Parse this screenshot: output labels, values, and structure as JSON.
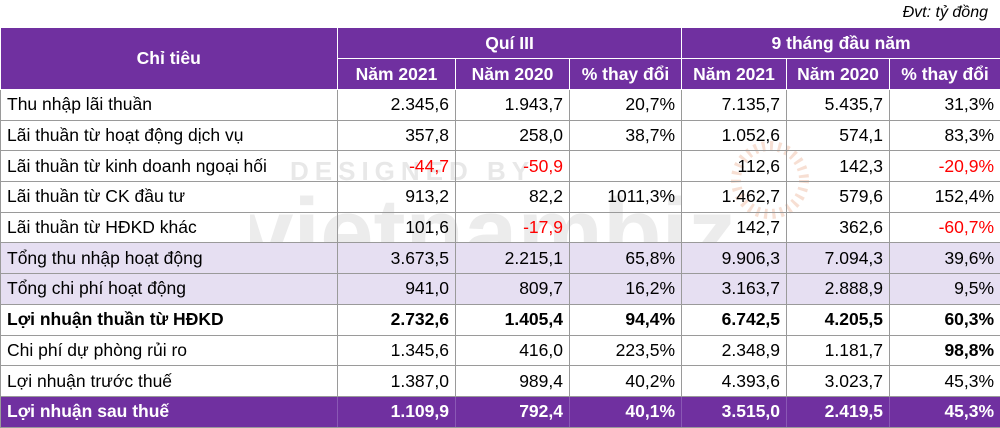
{
  "unit_note": "Đvt: tỷ đồng",
  "header": {
    "indicator": "Chỉ tiêu",
    "group1": "Quí III",
    "group2": "9 tháng đầu năm",
    "sub": [
      "Năm 2021",
      "Năm 2020",
      "% thay đổi",
      "Năm 2021",
      "Năm 2020",
      "% thay đổi"
    ]
  },
  "rows": [
    {
      "label": "Thu nhập lãi thuần",
      "cells": [
        "2.345,6",
        "1.943,7",
        "20,7%",
        "7.135,7",
        "5.435,7",
        "31,3%"
      ]
    },
    {
      "label": "Lãi thuần từ hoạt động dịch vụ",
      "cells": [
        "357,8",
        "258,0",
        "38,7%",
        "1.052,6",
        "574,1",
        "83,3%"
      ]
    },
    {
      "label": "Lãi thuần từ kinh doanh ngoại hối",
      "cells": [
        "-44,7",
        "-50,9",
        "",
        "112,6",
        "142,3",
        "-20,9%"
      ]
    },
    {
      "label": "Lãi thuần từ CK đầu tư",
      "cells": [
        "913,2",
        "82,2",
        "1011,3%",
        "1.462,7",
        "579,6",
        "152,4%"
      ]
    },
    {
      "label": "Lãi thuần từ HĐKD khác",
      "cells": [
        "101,6",
        "-17,9",
        "",
        "142,7",
        "362,6",
        "-60,7%"
      ]
    },
    {
      "label": "Tổng thu nhập hoạt động",
      "cells": [
        "3.673,5",
        "2.215,1",
        "65,8%",
        "9.906,3",
        "7.094,3",
        "39,6%"
      ]
    },
    {
      "label": "Tổng chi phí hoạt động",
      "cells": [
        "941,0",
        "809,7",
        "16,2%",
        "3.163,7",
        "2.888,9",
        "9,5%"
      ]
    },
    {
      "label": "Lợi nhuận thuần từ HĐKD",
      "cells": [
        "2.732,6",
        "1.405,4",
        "94,4%",
        "6.742,5",
        "4.205,5",
        "60,3%"
      ]
    },
    {
      "label": "Chi phí dự phòng rủi ro",
      "cells": [
        "1.345,6",
        "416,0",
        "223,5%",
        "2.348,9",
        "1.181,7",
        "98,8%"
      ]
    },
    {
      "label": "Lợi nhuận trước thuế",
      "cells": [
        "1.387,0",
        "989,4",
        "40,2%",
        "4.393,6",
        "3.023,7",
        "45,3%"
      ]
    },
    {
      "label": "Lợi nhuận sau thuế",
      "cells": [
        "1.109,9",
        "792,4",
        "40,1%",
        "3.515,0",
        "2.419,5",
        "45,3%"
      ]
    }
  ],
  "watermark": "DESIGNED BY vietnambiz",
  "colors": {
    "header_bg": "#7030a0",
    "highlight_bg": "#e6dff2",
    "negative": "#ff0000"
  }
}
